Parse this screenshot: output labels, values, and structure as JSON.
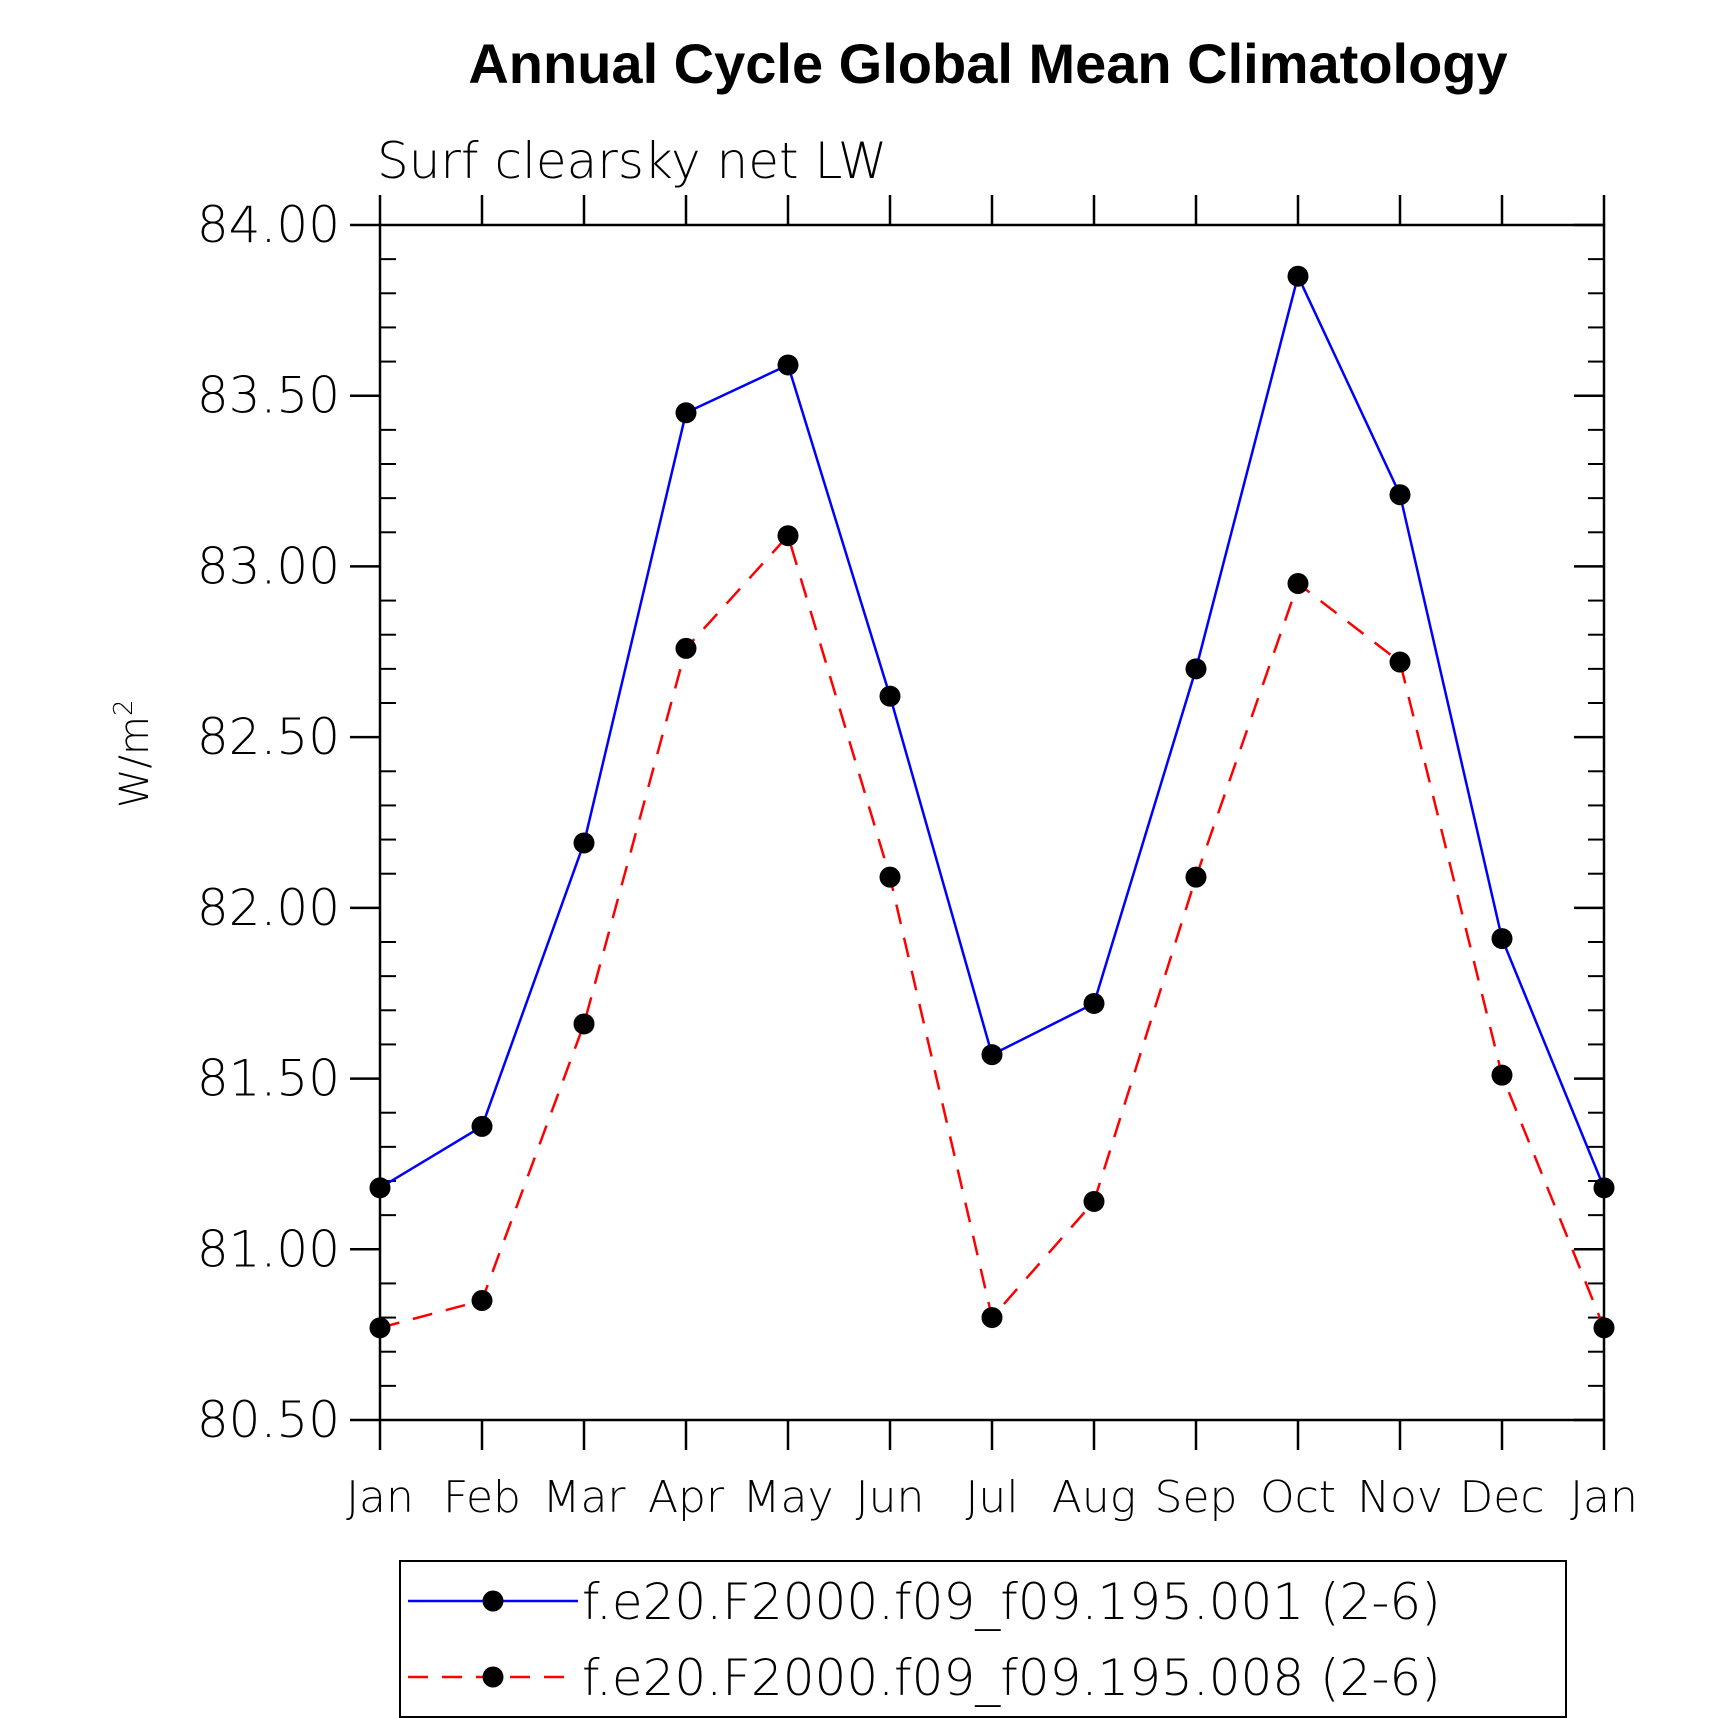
{
  "chart_data": {
    "type": "line",
    "title": "Annual Cycle Global Mean Climatology",
    "subtitle": "Surf clearsky net LW",
    "ylabel": "W/m",
    "ylabel_sup": "2",
    "xlabel": "",
    "categories": [
      "Jan",
      "Feb",
      "Mar",
      "Apr",
      "May",
      "Jun",
      "Jul",
      "Aug",
      "Sep",
      "Oct",
      "Nov",
      "Dec",
      "Jan"
    ],
    "ylim": [
      80.5,
      84.0
    ],
    "yticks": [
      "80.50",
      "81.00",
      "81.50",
      "82.00",
      "82.50",
      "83.00",
      "83.50",
      "84.00"
    ],
    "grid": false,
    "legend_position": "bottom",
    "series": [
      {
        "name": "f.e20.F2000.f09_f09.195.001 (2-6)",
        "color": "#0000ff",
        "dash": "solid",
        "marker": "filled-circle",
        "values": [
          81.18,
          81.36,
          82.19,
          83.45,
          83.59,
          82.62,
          81.57,
          81.72,
          82.7,
          83.85,
          83.21,
          81.91,
          81.18
        ]
      },
      {
        "name": "f.e20.F2000.f09_f09.195.008 (2-6)",
        "color": "#ff0000",
        "dash": "dashed",
        "marker": "filled-circle",
        "values": [
          80.77,
          80.85,
          81.66,
          82.76,
          83.09,
          82.09,
          80.8,
          81.14,
          82.09,
          82.95,
          82.72,
          81.51,
          80.77
        ]
      }
    ]
  }
}
